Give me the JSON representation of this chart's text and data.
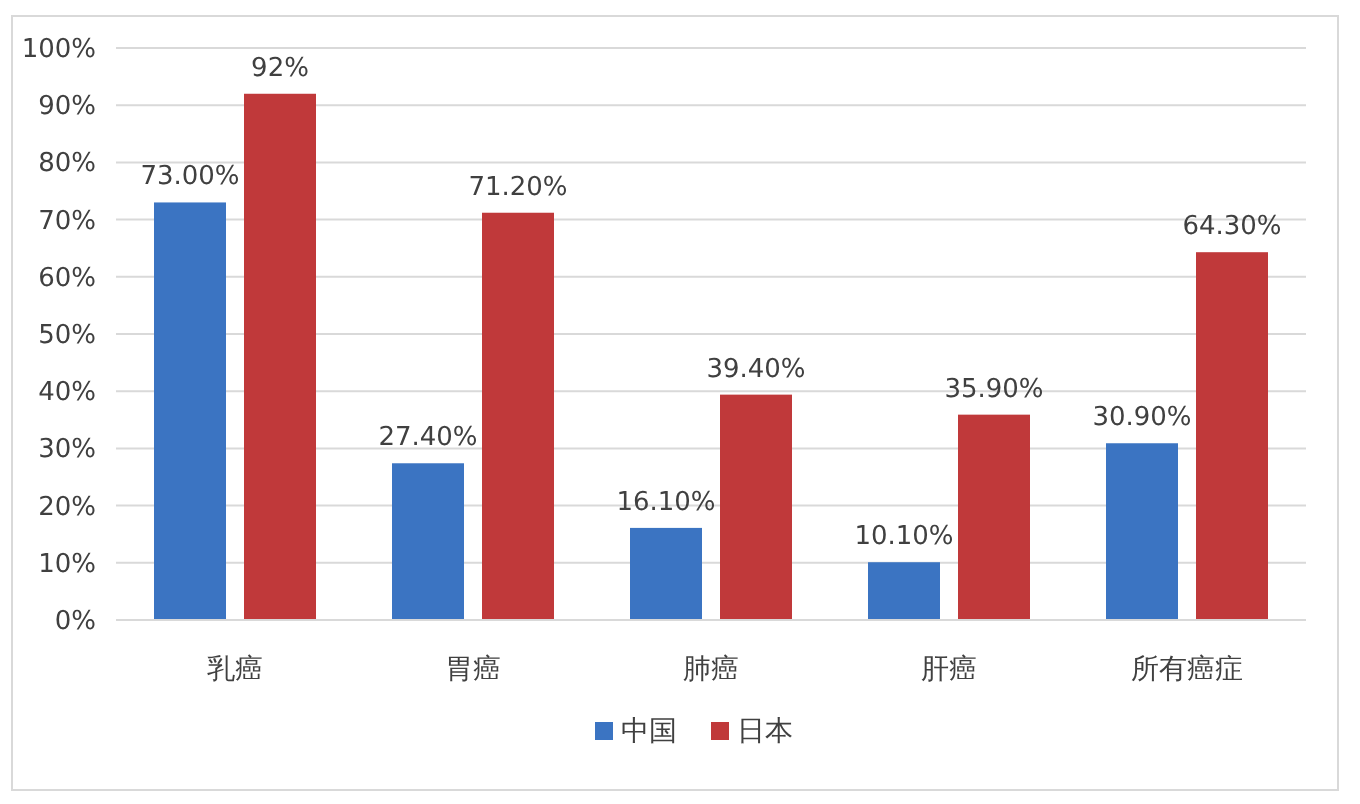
{
  "chart_data": {
    "type": "bar",
    "categories": [
      "乳癌",
      "胃癌",
      "肺癌",
      "肝癌",
      "所有癌症"
    ],
    "series": [
      {
        "name": "中国",
        "color": "#3b74c2",
        "values": [
          73,
          27.4,
          16.1,
          10.1,
          30.9
        ],
        "value_labels": [
          "73.00%",
          "27.40%",
          "16.10%",
          "10.10%",
          "30.90%"
        ]
      },
      {
        "name": "日本",
        "color": "#c0393a",
        "values": [
          92,
          71.2,
          39.4,
          35.9,
          64.3
        ],
        "value_labels": [
          "92%",
          "71.20%",
          "39.40%",
          "35.90%",
          "64.30%"
        ]
      }
    ],
    "ylim": [
      0,
      100
    ],
    "yticks": [
      {
        "value": 0,
        "label": "0%"
      },
      {
        "value": 10,
        "label": "10%"
      },
      {
        "value": 20,
        "label": "20%"
      },
      {
        "value": 30,
        "label": "30%"
      },
      {
        "value": 40,
        "label": "40%"
      },
      {
        "value": 50,
        "label": "50%"
      },
      {
        "value": 60,
        "label": "60%"
      },
      {
        "value": 70,
        "label": "70%"
      },
      {
        "value": 80,
        "label": "80%"
      },
      {
        "value": 90,
        "label": "90%"
      },
      {
        "value": 100,
        "label": "100%"
      }
    ],
    "grid": "y",
    "legend": "bottom"
  }
}
